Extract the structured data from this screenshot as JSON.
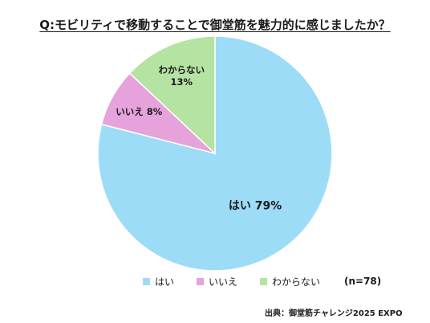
{
  "title": "Q:モビリティで移動することで御堂筋を魅力的に感じましたか？",
  "sample_size": "(n=78)",
  "source": "出典：御堂筋チャレンジ2025 EXPO",
  "chart_data": {
    "type": "pie",
    "title": "Q:モビリティで移動することで御堂筋を魅力的に感じましたか？",
    "slices": [
      {
        "label": "はい",
        "value": 79,
        "color": "#9ddcf7",
        "label_text": "はい 79%"
      },
      {
        "label": "いいえ",
        "value": 8,
        "color": "#e6a2db",
        "label_text": "いいえ 8%"
      },
      {
        "label": "わからない",
        "value": 13,
        "color": "#b5e3a2",
        "label_text": "わからない\n13%"
      }
    ],
    "start": "12 o'clock",
    "direction": "clockwise",
    "legend": {
      "position": "bottom",
      "entries": [
        "はい",
        "いいえ",
        "わからない"
      ]
    }
  }
}
